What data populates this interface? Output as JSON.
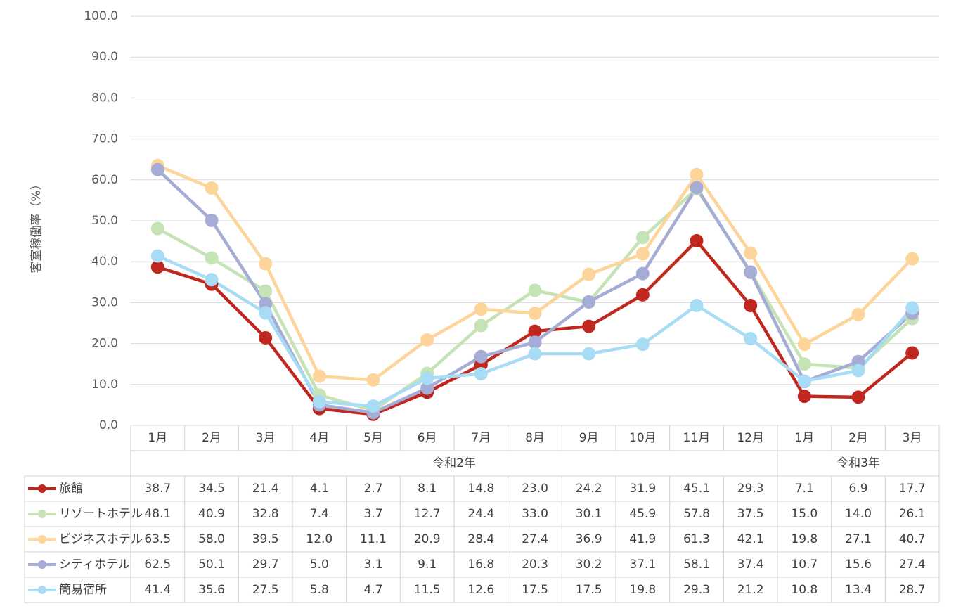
{
  "chart_data": {
    "type": "line",
    "title": "",
    "ylabel": "客室稼働率（%）",
    "xlabel": "",
    "ylim": [
      0,
      100
    ],
    "yticks": [
      "0.0",
      "10.0",
      "20.0",
      "30.0",
      "40.0",
      "50.0",
      "60.0",
      "70.0",
      "80.0",
      "90.0",
      "100.0"
    ],
    "categories": [
      "1月",
      "2月",
      "3月",
      "4月",
      "5月",
      "6月",
      "7月",
      "8月",
      "9月",
      "10月",
      "11月",
      "12月",
      "1月",
      "2月",
      "3月"
    ],
    "groups": [
      {
        "label": "令和2年",
        "count": 12
      },
      {
        "label": "令和3年",
        "count": 3
      }
    ],
    "legend_position": "data-table",
    "series": [
      {
        "name": "旅館",
        "color": "#c0281f",
        "values": [
          38.7,
          34.5,
          21.4,
          4.1,
          2.7,
          8.1,
          14.8,
          23.0,
          24.2,
          31.9,
          45.1,
          29.3,
          7.1,
          6.9,
          17.7
        ],
        "labels": [
          "38.7",
          "34.5",
          "21.4",
          "4.1",
          "2.7",
          "8.1",
          "14.8",
          "23.0",
          "24.2",
          "31.9",
          "45.1",
          "29.3",
          "7.1",
          "6.9",
          "17.7"
        ]
      },
      {
        "name": "リゾートホテル",
        "color": "#c5e3b4",
        "values": [
          48.1,
          40.9,
          32.8,
          7.4,
          3.7,
          12.7,
          24.4,
          33.0,
          30.1,
          45.9,
          57.8,
          37.5,
          15.0,
          14.0,
          26.1
        ],
        "labels": [
          "48.1",
          "40.9",
          "32.8",
          "7.4",
          "3.7",
          "12.7",
          "24.4",
          "33.0",
          "30.1",
          "45.9",
          "57.8",
          "37.5",
          "15.0",
          "14.0",
          "26.1"
        ]
      },
      {
        "name": "ビジネスホテル",
        "color": "#fdd59a",
        "values": [
          63.5,
          58.0,
          39.5,
          12.0,
          11.1,
          20.9,
          28.4,
          27.4,
          36.9,
          41.9,
          61.3,
          42.1,
          19.8,
          27.1,
          40.7
        ],
        "labels": [
          "63.5",
          "58.0",
          "39.5",
          "12.0",
          "11.1",
          "20.9",
          "28.4",
          "27.4",
          "36.9",
          "41.9",
          "61.3",
          "42.1",
          "19.8",
          "27.1",
          "40.7"
        ]
      },
      {
        "name": "シティホテル",
        "color": "#a5acd6",
        "values": [
          62.5,
          50.1,
          29.7,
          5.0,
          3.1,
          9.1,
          16.8,
          20.3,
          30.2,
          37.1,
          58.1,
          37.4,
          10.7,
          15.6,
          27.4
        ],
        "labels": [
          "62.5",
          "50.1",
          "29.7",
          "5.0",
          "3.1",
          "9.1",
          "16.8",
          "20.3",
          "30.2",
          "37.1",
          "58.1",
          "37.4",
          "10.7",
          "15.6",
          "27.4"
        ]
      },
      {
        "name": "簡易宿所",
        "color": "#a8dcf5",
        "values": [
          41.4,
          35.6,
          27.5,
          5.8,
          4.7,
          11.5,
          12.6,
          17.5,
          17.5,
          19.8,
          29.3,
          21.2,
          10.8,
          13.4,
          28.7
        ],
        "labels": [
          "41.4",
          "35.6",
          "27.5",
          "5.8",
          "4.7",
          "11.5",
          "12.6",
          "17.5",
          "17.5",
          "19.8",
          "29.3",
          "21.2",
          "10.8",
          "13.4",
          "28.7"
        ]
      }
    ]
  }
}
